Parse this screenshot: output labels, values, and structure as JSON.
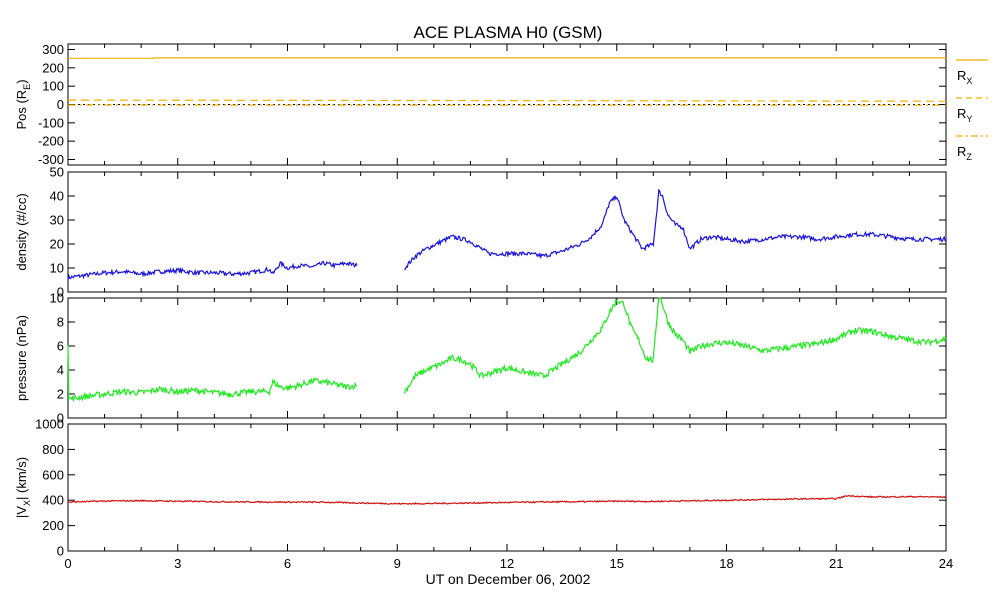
{
  "figure": {
    "title": "ACE PLASMA H0 (GSM)",
    "xlabel": "UT on December 06, 2002"
  },
  "colors": {
    "position": "#f0b000",
    "position_zero": "#000000",
    "density": "#1a14e0",
    "pressure": "#1eea1e",
    "velocity": "#d11111"
  },
  "chart_data": [
    {
      "type": "line",
      "id": "position",
      "ylabel": "Pos (R",
      "ylabel_sub": "E",
      "ylabel_tail": ")",
      "xlim": [
        0,
        24
      ],
      "ylim": [
        -330,
        330
      ],
      "yticks": [
        300,
        200,
        100,
        0,
        -100,
        -200,
        -300
      ],
      "ytick_labels": [
        "300",
        "200",
        "100",
        "0",
        "-100",
        "-200",
        "-300"
      ],
      "legend_placement": "right",
      "series": [
        {
          "name": "R",
          "sub": "X",
          "style": "solid",
          "x": [
            0,
            2.35,
            2.36,
            24
          ],
          "y": [
            252,
            252,
            254,
            254
          ]
        },
        {
          "name": "R",
          "sub": "Y",
          "style": "dashed",
          "x": [
            0,
            12,
            24
          ],
          "y": [
            24,
            21,
            18
          ]
        },
        {
          "name": "R",
          "sub": "Z",
          "style": "dashdot",
          "x": [
            0,
            12,
            24
          ],
          "y": [
            -3,
            -4,
            -4
          ]
        }
      ],
      "zero_line": {
        "x": [
          0,
          24
        ],
        "y": [
          0,
          0
        ]
      }
    },
    {
      "type": "line",
      "id": "density",
      "ylabel": "density (#/cc)",
      "xlim": [
        0,
        24
      ],
      "ylim": [
        0,
        50
      ],
      "yticks": [
        0,
        10,
        20,
        30,
        40,
        50
      ],
      "ytick_labels": [
        "0",
        "10",
        "20",
        "30",
        "40",
        "50"
      ],
      "gap": [
        7.9,
        9.2
      ],
      "series": [
        {
          "x": [
            0,
            0.5,
            1,
            1.5,
            2,
            2.5,
            3,
            3.5,
            4,
            4.5,
            5,
            5.5,
            5.6,
            5.8,
            6,
            6.3,
            6.7,
            7,
            7.3,
            7.6,
            7.9
          ],
          "y": [
            6,
            7,
            8,
            8.5,
            7.5,
            8.5,
            9,
            8,
            8,
            7.5,
            8,
            9.5,
            7.5,
            12,
            10,
            11,
            10.5,
            12,
            11,
            12,
            11
          ]
        },
        {
          "x": [
            9.2,
            9.5,
            9.8,
            10.2,
            10.5,
            10.8,
            11,
            11.5,
            12,
            12.5,
            13,
            13.5,
            14,
            14.3,
            14.6,
            14.8,
            15,
            15.2,
            15.4,
            15.7,
            16,
            16.15,
            16.25,
            16.4,
            16.6,
            16.8,
            17,
            17.3,
            17.6,
            18,
            18.5,
            19,
            19.5,
            20,
            20.5,
            21,
            21.5,
            22,
            22.5,
            23,
            23.5,
            24
          ],
          "y": [
            10,
            15,
            18,
            21,
            23,
            22,
            21,
            16,
            16,
            16,
            15,
            17,
            20,
            23,
            28,
            37,
            40,
            30,
            25,
            18,
            20,
            42,
            40,
            32,
            28,
            27,
            18,
            22,
            23,
            22,
            21,
            22,
            23,
            23,
            22,
            23,
            24,
            24,
            23,
            22,
            22,
            22
          ]
        }
      ]
    },
    {
      "type": "line",
      "id": "pressure",
      "ylabel": "pressure (nPa)",
      "xlim": [
        0,
        24
      ],
      "ylim": [
        0,
        10
      ],
      "yticks": [
        0,
        2,
        4,
        6,
        8,
        10
      ],
      "ytick_labels": [
        "0",
        "2",
        "4",
        "6",
        "8",
        "10"
      ],
      "gap": [
        7.9,
        9.2
      ],
      "series": [
        {
          "x": [
            0,
            0.02,
            0.05,
            0.5,
            1,
            1.5,
            2,
            2.5,
            3,
            3.5,
            4,
            4.5,
            5,
            5.5,
            5.6,
            5.8,
            6,
            6.3,
            6.7,
            7,
            7.3,
            7.6,
            7.9
          ],
          "y": [
            6.3,
            1.8,
            1.6,
            1.8,
            2,
            2.2,
            2.1,
            2.4,
            2.2,
            2.3,
            2.1,
            2,
            2.2,
            2.2,
            3,
            2.6,
            2.5,
            2.7,
            3.1,
            3.0,
            2.8,
            2.6,
            2.7
          ]
        },
        {
          "x": [
            9.2,
            9.5,
            9.8,
            10.2,
            10.5,
            10.8,
            11,
            11.3,
            11.6,
            12,
            12.5,
            13,
            13.5,
            14,
            14.3,
            14.6,
            14.8,
            15,
            15.2,
            15.4,
            15.6,
            15.8,
            16,
            16.15,
            16.25,
            16.4,
            16.6,
            16.8,
            17,
            17.3,
            17.6,
            18,
            18.5,
            19,
            19.5,
            20,
            20.5,
            21,
            21.5,
            22,
            22.5,
            23,
            23.5,
            24
          ],
          "y": [
            2.2,
            3.5,
            4,
            4.5,
            5,
            4.8,
            4.5,
            3.5,
            3.8,
            4.2,
            3.8,
            3.5,
            4.5,
            5.5,
            6.5,
            7.5,
            8.8,
            9.8,
            9.5,
            7.5,
            6.5,
            5,
            4.8,
            10.3,
            9.5,
            8,
            7,
            6.5,
            5.5,
            6,
            6.2,
            6.3,
            6,
            5.6,
            5.8,
            6,
            6.2,
            6.6,
            7.3,
            7.2,
            6.8,
            6.5,
            6.3,
            6.6
          ]
        }
      ]
    },
    {
      "type": "line",
      "id": "velocity",
      "ylabel": "|V",
      "ylabel_sub": "X",
      "ylabel_tail": "| (km/s)",
      "xlim": [
        0,
        24
      ],
      "ylim": [
        0,
        1000
      ],
      "yticks": [
        0,
        200,
        400,
        600,
        800,
        1000
      ],
      "ytick_labels": [
        "0",
        "200",
        "400",
        "600",
        "800",
        "1000"
      ],
      "series": [
        {
          "x": [
            0,
            1,
            2,
            3,
            4,
            5,
            6,
            7,
            8,
            9,
            10,
            11,
            12,
            13,
            14,
            15,
            16,
            17,
            18,
            19,
            20,
            21,
            21.3,
            22,
            23,
            24
          ],
          "y": [
            385,
            393,
            396,
            392,
            388,
            386,
            385,
            384,
            378,
            372,
            374,
            378,
            382,
            386,
            388,
            392,
            390,
            395,
            400,
            405,
            410,
            412,
            435,
            425,
            428,
            425
          ]
        }
      ]
    }
  ],
  "xaxis": {
    "ticks": [
      0,
      3,
      6,
      9,
      12,
      15,
      18,
      21,
      24
    ],
    "tick_labels": [
      "0",
      "3",
      "6",
      "9",
      "12",
      "15",
      "18",
      "21",
      "24"
    ]
  }
}
